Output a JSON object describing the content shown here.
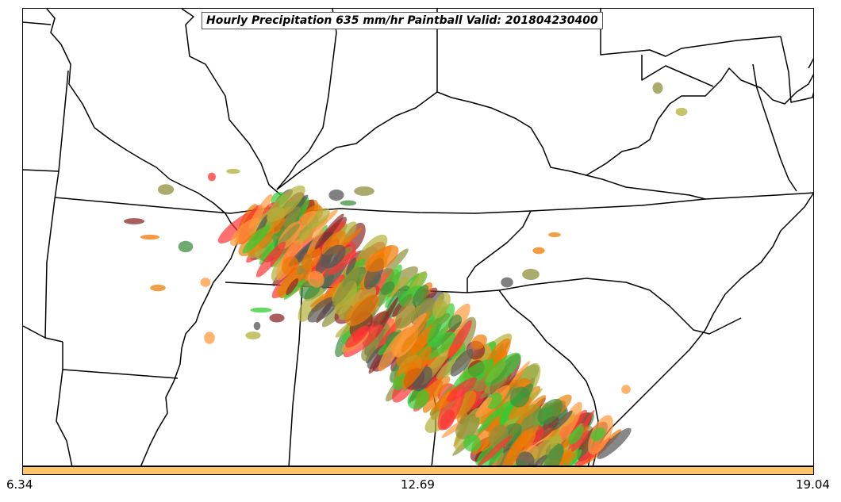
{
  "title": "Hourly Precipitation 635 mm/hr Paintball Valid: 201804230400",
  "colorbar": {
    "color": "#ffc468",
    "ticks": [
      "6.34",
      "12.69",
      "19.04"
    ]
  },
  "member_colors": [
    "#ff9a3c",
    "#e8820a",
    "#3f8f3f",
    "#33cc33",
    "#8b2a2a",
    "#555555",
    "#b3b03a",
    "#8f8f3a",
    "#ff3333",
    "#f07800"
  ]
}
